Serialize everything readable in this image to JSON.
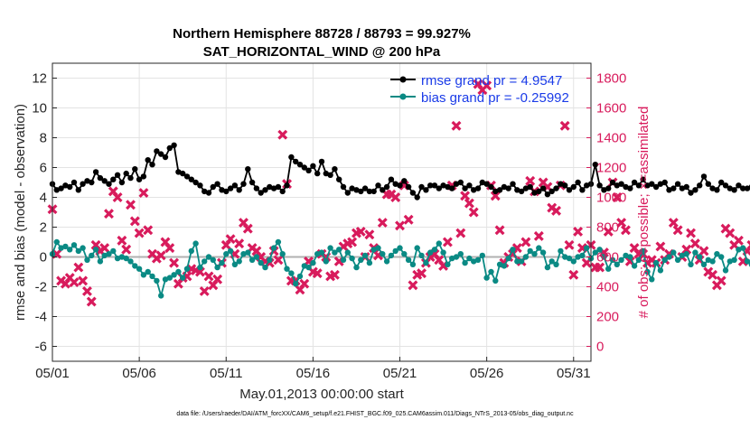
{
  "chart_data": {
    "type": "line",
    "title": "Northern Hemisphere 88728 / 88793 = 99.927%",
    "subtitle": "SAT_HORIZONTAL_WIND @ 200 hPa",
    "xlabel": "May.01,2013 00:00:00 start",
    "ylabel_left": "rmse and bias (model - observation)",
    "ylabel_right": "# of obs: o=possible; ×=assimilated",
    "footer": "data file: /Users/raeder/DAI/ATM_forcXX/CAM6_setup/f.e21.FHIST_BGC.f09_025.CAM6assim.011/Diags_NTrS_2013-05/obs_diag_output.nc",
    "x_ticks": [
      "05/01",
      "05/06",
      "05/11",
      "05/16",
      "05/21",
      "05/26",
      "05/31"
    ],
    "x_tick_days": [
      0,
      5,
      10,
      15,
      20,
      25,
      30
    ],
    "xlim": [
      0,
      31
    ],
    "ylim_left": [
      -7,
      13
    ],
    "yticks_left": [
      -6,
      -4,
      -2,
      0,
      2,
      4,
      6,
      8,
      10,
      12
    ],
    "ylim_right": [
      -100,
      1900
    ],
    "yticks_right": [
      0,
      200,
      400,
      600,
      800,
      1000,
      1200,
      1400,
      1600,
      1800
    ],
    "grid": true,
    "legend_position": "top-right",
    "colors": {
      "rmse": "#000000",
      "bias": "#0a8a84",
      "obs": "#d81b5c",
      "zero_line": "#b0b0b0",
      "legend_text": "#1a3be8"
    },
    "series": [
      {
        "name": "rmse grand pr = 4.9547",
        "axis": "left",
        "x_start": 0.0,
        "x_step": 0.25,
        "values": [
          4.9,
          4.5,
          4.6,
          4.8,
          4.7,
          5.0,
          4.5,
          4.9,
          5.1,
          5.0,
          5.7,
          5.3,
          5.1,
          4.9,
          5.2,
          5.5,
          5.0,
          5.6,
          5.3,
          5.9,
          5.2,
          5.4,
          6.5,
          6.2,
          7.1,
          6.9,
          6.7,
          7.3,
          7.5,
          5.7,
          5.6,
          5.4,
          5.2,
          5.0,
          4.8,
          4.4,
          4.3,
          4.7,
          4.9,
          4.5,
          4.4,
          4.6,
          4.8,
          4.5,
          4.9,
          5.9,
          5.0,
          4.6,
          4.3,
          4.5,
          4.7,
          4.6,
          4.7,
          4.4,
          4.8,
          6.7,
          6.4,
          6.2,
          6.0,
          5.8,
          6.1,
          5.6,
          6.4,
          5.6,
          5.5,
          5.9,
          5.2,
          4.7,
          4.3,
          4.6,
          4.5,
          4.4,
          4.6,
          4.4,
          4.4,
          4.8,
          4.5,
          4.7,
          5.2,
          4.9,
          4.8,
          5.1,
          4.7,
          4.3,
          4.0,
          4.7,
          4.5,
          4.8,
          4.8,
          4.6,
          4.8,
          4.7,
          4.6,
          4.9,
          5.0,
          4.6,
          4.8,
          4.5,
          4.6,
          5.0,
          4.9,
          4.7,
          4.4,
          4.5,
          4.7,
          4.6,
          4.9,
          4.5,
          4.4,
          4.6,
          4.7,
          4.3,
          4.4,
          4.6,
          4.2,
          4.4,
          4.6,
          4.9,
          4.8,
          4.5,
          4.7,
          5.0,
          4.5,
          4.8,
          4.9,
          6.2,
          4.8,
          4.5,
          4.6,
          5.0,
          4.8,
          4.9,
          4.7,
          4.6,
          5.0,
          4.8,
          5.2,
          4.8,
          4.9,
          4.7,
          4.9,
          5.0,
          4.5,
          4.6,
          4.9,
          4.6,
          4.7,
          4.3,
          4.5,
          4.8,
          5.4,
          4.9,
          4.6,
          4.5,
          5.0,
          4.8,
          4.6,
          4.5,
          4.8,
          4.6,
          4.6,
          4.7,
          4.2,
          4.8,
          4.8,
          5.3,
          4.6,
          4.9,
          5.4,
          4.9,
          4.4,
          4.7,
          4.5,
          4.6,
          4.6,
          5.3,
          4.6,
          4.9,
          4.7,
          5.2,
          4.1,
          4.5,
          4.6,
          4.5,
          4.6
        ]
      },
      {
        "name": "bias grand pr = -0.25992",
        "axis": "left",
        "x_start": 0.0,
        "x_step": 0.25,
        "values": [
          0.2,
          1.0,
          0.6,
          0.7,
          0.5,
          0.8,
          0.4,
          0.6,
          -0.2,
          0.1,
          0.5,
          -0.3,
          0.1,
          0.2,
          0.4,
          -0.1,
          0.0,
          -0.1,
          -0.3,
          -0.6,
          -0.8,
          -1.2,
          -1.0,
          -1.3,
          -1.6,
          -2.6,
          -1.5,
          -1.4,
          -1.2,
          -1.0,
          -1.4,
          -0.8,
          0.4,
          0.9,
          -0.7,
          -0.3,
          0.0,
          -0.2,
          -0.7,
          -0.4,
          0.2,
          0.4,
          -0.5,
          -0.3,
          0.2,
          0.3,
          -0.2,
          0.0,
          -0.4,
          -0.7,
          -0.2,
          0.6,
          1.0,
          0.2,
          -0.8,
          -1.1,
          -1.8,
          -1.3,
          -0.6,
          -0.7,
          -0.4,
          0.2,
          0.3,
          -0.3,
          0.6,
          0.3,
          0.5,
          -0.2,
          0.3,
          -0.1,
          -0.7,
          -0.2,
          0.1,
          -0.4,
          0.5,
          0.6,
          0.2,
          -0.3,
          0.1,
          0.4,
          0.6,
          0.2,
          -0.2,
          -0.5,
          0.6,
          0.1,
          -0.4,
          0.3,
          0.5,
          0.9,
          0.3,
          -0.5,
          -0.1,
          0.0,
          0.2,
          -0.4,
          -0.1,
          -0.3,
          -0.2,
          0.1,
          -1.4,
          -1.0,
          -1.6,
          -0.5,
          -0.6,
          -0.1,
          0.5,
          -0.3,
          -0.3,
          0.0,
          0.4,
          0.2,
          0.6,
          0.3,
          -0.7,
          -0.3,
          -0.5,
          0.4,
          0.0,
          -0.1,
          -0.3,
          0.0,
          0.1,
          0.6,
          -0.1,
          0.3,
          0.5,
          0.0,
          -0.8,
          -0.2,
          -0.5,
          -0.2,
          0.1,
          0.0,
          -0.6,
          -0.2,
          0.4,
          -1.0,
          -1.5,
          -0.4,
          -0.9,
          -0.2,
          0.0,
          0.3,
          -0.2,
          0.1,
          0.2,
          -0.5,
          0.3,
          0.0,
          -0.5,
          -0.2,
          -0.3,
          0.2,
          0.0,
          -0.9,
          -0.3,
          -0.2,
          0.5,
          0.6,
          -0.3,
          -0.5,
          0.1,
          -0.5,
          0.2,
          -0.3,
          -0.2,
          0.3,
          0.6,
          -0.4,
          0.2,
          -0.7,
          -0.3,
          0.4,
          0.1,
          -0.6,
          0.2,
          0.0,
          -0.4,
          0.3,
          0.0,
          1.5,
          -0.5,
          0.1,
          -0.3,
          1.0,
          -1.6,
          0.3,
          -0.1
        ]
      },
      {
        "name": "# of obs assimilated",
        "axis": "right",
        "x_start": 0.0,
        "x_step": 0.25,
        "values": [
          920,
          620,
          440,
          420,
          460,
          430,
          530,
          440,
          370,
          300,
          680,
          640,
          660,
          890,
          1040,
          1000,
          710,
          650,
          950,
          840,
          760,
          1030,
          780,
          620,
          590,
          610,
          700,
          660,
          560,
          420,
          460,
          470,
          520,
          510,
          500,
          370,
          470,
          410,
          450,
          560,
          680,
          720,
          620,
          690,
          830,
          790,
          660,
          640,
          600,
          570,
          560,
          640,
          580,
          1420,
          1090,
          440,
          440,
          380,
          420,
          570,
          500,
          490,
          620,
          600,
          470,
          480,
          570,
          670,
          690,
          700,
          760,
          770,
          600,
          750,
          660,
          610,
          830,
          1020,
          1020,
          1000,
          810,
          1080,
          850,
          410,
          480,
          490,
          560,
          600,
          620,
          580,
          540,
          700,
          1080,
          1480,
          760,
          1010,
          960,
          900,
          1760,
          1720,
          1750,
          1080,
          1010,
          780,
          560,
          600,
          620,
          660,
          570,
          700,
          1110,
          1040,
          740,
          1100,
          1070,
          930,
          910,
          1080,
          1480,
          680,
          480,
          770,
          660,
          560,
          680,
          530,
          530,
          630,
          770,
          1100,
          1000,
          830,
          780,
          570,
          660,
          620,
          620,
          560,
          580,
          560,
          670,
          580,
          620,
          830,
          780,
          600,
          650,
          760,
          690,
          580,
          640,
          500,
          480,
          410,
          440,
          790,
          760,
          680,
          710,
          570,
          640,
          680,
          650,
          330,
          430,
          800,
          730,
          650,
          750,
          660,
          700,
          480,
          510,
          660,
          600,
          720,
          880,
          830,
          780,
          910,
          950,
          920,
          920,
          900,
          930,
          430,
          680,
          670,
          0
        ]
      }
    ]
  }
}
